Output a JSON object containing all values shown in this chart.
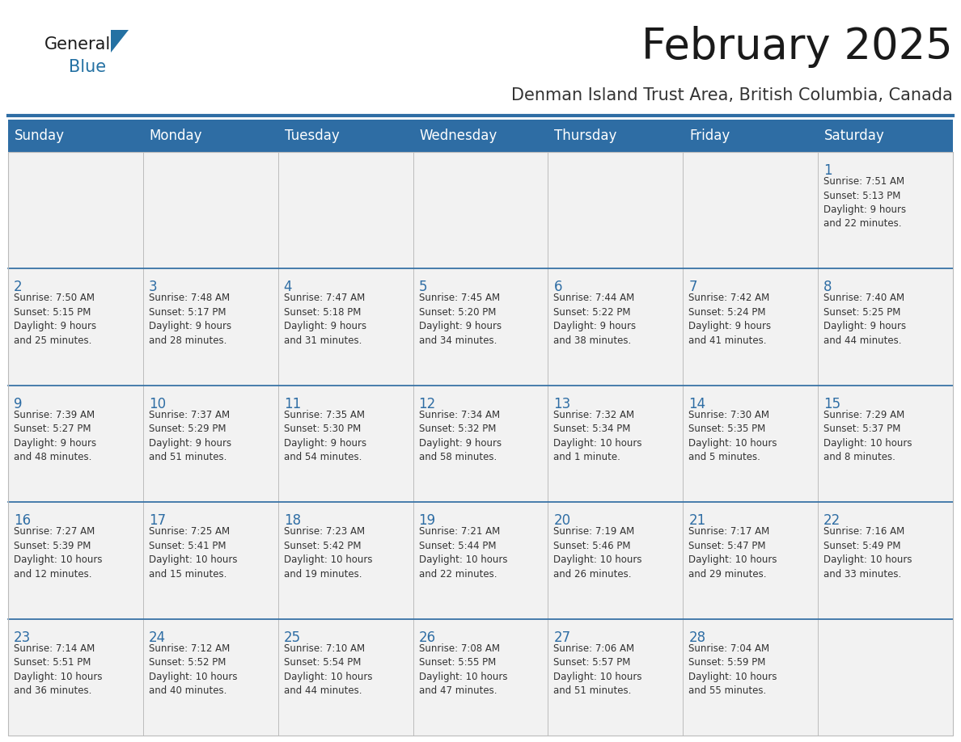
{
  "title": "February 2025",
  "subtitle": "Denman Island Trust Area, British Columbia, Canada",
  "header_bg": "#2E6DA4",
  "header_text_color": "#FFFFFF",
  "cell_bg_odd": "#F2F2F2",
  "cell_bg_even": "#FFFFFF",
  "day_headers": [
    "Sunday",
    "Monday",
    "Tuesday",
    "Wednesday",
    "Thursday",
    "Friday",
    "Saturday"
  ],
  "title_color": "#1a1a1a",
  "subtitle_color": "#333333",
  "day_num_color": "#2E6DA4",
  "cell_text_color": "#333333",
  "grid_color": "#BBBBBB",
  "row_separator_color": "#2E6DA4",
  "logo_general_color": "#1a1a1a",
  "logo_blue_color": "#2471A3",
  "weeks": [
    [
      {
        "day": null,
        "info": null
      },
      {
        "day": null,
        "info": null
      },
      {
        "day": null,
        "info": null
      },
      {
        "day": null,
        "info": null
      },
      {
        "day": null,
        "info": null
      },
      {
        "day": null,
        "info": null
      },
      {
        "day": 1,
        "info": "Sunrise: 7:51 AM\nSunset: 5:13 PM\nDaylight: 9 hours\nand 22 minutes."
      }
    ],
    [
      {
        "day": 2,
        "info": "Sunrise: 7:50 AM\nSunset: 5:15 PM\nDaylight: 9 hours\nand 25 minutes."
      },
      {
        "day": 3,
        "info": "Sunrise: 7:48 AM\nSunset: 5:17 PM\nDaylight: 9 hours\nand 28 minutes."
      },
      {
        "day": 4,
        "info": "Sunrise: 7:47 AM\nSunset: 5:18 PM\nDaylight: 9 hours\nand 31 minutes."
      },
      {
        "day": 5,
        "info": "Sunrise: 7:45 AM\nSunset: 5:20 PM\nDaylight: 9 hours\nand 34 minutes."
      },
      {
        "day": 6,
        "info": "Sunrise: 7:44 AM\nSunset: 5:22 PM\nDaylight: 9 hours\nand 38 minutes."
      },
      {
        "day": 7,
        "info": "Sunrise: 7:42 AM\nSunset: 5:24 PM\nDaylight: 9 hours\nand 41 minutes."
      },
      {
        "day": 8,
        "info": "Sunrise: 7:40 AM\nSunset: 5:25 PM\nDaylight: 9 hours\nand 44 minutes."
      }
    ],
    [
      {
        "day": 9,
        "info": "Sunrise: 7:39 AM\nSunset: 5:27 PM\nDaylight: 9 hours\nand 48 minutes."
      },
      {
        "day": 10,
        "info": "Sunrise: 7:37 AM\nSunset: 5:29 PM\nDaylight: 9 hours\nand 51 minutes."
      },
      {
        "day": 11,
        "info": "Sunrise: 7:35 AM\nSunset: 5:30 PM\nDaylight: 9 hours\nand 54 minutes."
      },
      {
        "day": 12,
        "info": "Sunrise: 7:34 AM\nSunset: 5:32 PM\nDaylight: 9 hours\nand 58 minutes."
      },
      {
        "day": 13,
        "info": "Sunrise: 7:32 AM\nSunset: 5:34 PM\nDaylight: 10 hours\nand 1 minute."
      },
      {
        "day": 14,
        "info": "Sunrise: 7:30 AM\nSunset: 5:35 PM\nDaylight: 10 hours\nand 5 minutes."
      },
      {
        "day": 15,
        "info": "Sunrise: 7:29 AM\nSunset: 5:37 PM\nDaylight: 10 hours\nand 8 minutes."
      }
    ],
    [
      {
        "day": 16,
        "info": "Sunrise: 7:27 AM\nSunset: 5:39 PM\nDaylight: 10 hours\nand 12 minutes."
      },
      {
        "day": 17,
        "info": "Sunrise: 7:25 AM\nSunset: 5:41 PM\nDaylight: 10 hours\nand 15 minutes."
      },
      {
        "day": 18,
        "info": "Sunrise: 7:23 AM\nSunset: 5:42 PM\nDaylight: 10 hours\nand 19 minutes."
      },
      {
        "day": 19,
        "info": "Sunrise: 7:21 AM\nSunset: 5:44 PM\nDaylight: 10 hours\nand 22 minutes."
      },
      {
        "day": 20,
        "info": "Sunrise: 7:19 AM\nSunset: 5:46 PM\nDaylight: 10 hours\nand 26 minutes."
      },
      {
        "day": 21,
        "info": "Sunrise: 7:17 AM\nSunset: 5:47 PM\nDaylight: 10 hours\nand 29 minutes."
      },
      {
        "day": 22,
        "info": "Sunrise: 7:16 AM\nSunset: 5:49 PM\nDaylight: 10 hours\nand 33 minutes."
      }
    ],
    [
      {
        "day": 23,
        "info": "Sunrise: 7:14 AM\nSunset: 5:51 PM\nDaylight: 10 hours\nand 36 minutes."
      },
      {
        "day": 24,
        "info": "Sunrise: 7:12 AM\nSunset: 5:52 PM\nDaylight: 10 hours\nand 40 minutes."
      },
      {
        "day": 25,
        "info": "Sunrise: 7:10 AM\nSunset: 5:54 PM\nDaylight: 10 hours\nand 44 minutes."
      },
      {
        "day": 26,
        "info": "Sunrise: 7:08 AM\nSunset: 5:55 PM\nDaylight: 10 hours\nand 47 minutes."
      },
      {
        "day": 27,
        "info": "Sunrise: 7:06 AM\nSunset: 5:57 PM\nDaylight: 10 hours\nand 51 minutes."
      },
      {
        "day": 28,
        "info": "Sunrise: 7:04 AM\nSunset: 5:59 PM\nDaylight: 10 hours\nand 55 minutes."
      },
      {
        "day": null,
        "info": null
      }
    ]
  ]
}
